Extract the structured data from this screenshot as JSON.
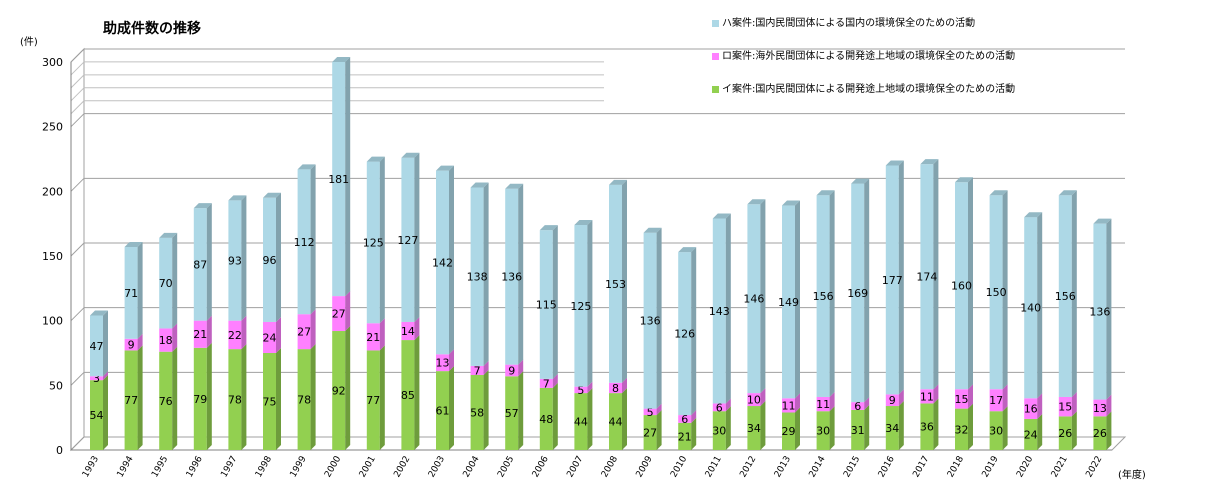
{
  "title": "助成件数の推移",
  "y_unit": "(件)",
  "x_unit": "(年度)",
  "legend": [
    {
      "label": "ハ案件:国内民間団体による国内の環境保全のための活動",
      "color": "#add8e6"
    },
    {
      "label": "ロ案件:海外民間団体による開発途上地域の環境保全のための活動",
      "color": "#ff80ff"
    },
    {
      "label": "イ案件:国内民間団体による開発途上地域の環境保全のための活動",
      "color": "#92d050"
    }
  ],
  "chart_data": {
    "type": "bar",
    "stacked": true,
    "title": "助成件数の推移",
    "xlabel": "(年度)",
    "ylabel": "(件)",
    "ylim": [
      0,
      300
    ],
    "yticks": [
      0,
      50,
      100,
      150,
      200,
      250,
      300
    ],
    "categories": [
      "1993",
      "1994",
      "1995",
      "1996",
      "1997",
      "1998",
      "1999",
      "2000",
      "2001",
      "2002",
      "2003",
      "2004",
      "2005",
      "2006",
      "2007",
      "2008",
      "2009",
      "2010",
      "2011",
      "2012",
      "2013",
      "2014",
      "2015",
      "2016",
      "2017",
      "2018",
      "2019",
      "2020",
      "2021",
      "2022"
    ],
    "series": [
      {
        "name": "イ案件:国内民間団体による開発途上地域の環境保全のための活動",
        "color": "#92d050",
        "values": [
          54,
          77,
          76,
          79,
          78,
          75,
          78,
          92,
          77,
          85,
          61,
          58,
          57,
          48,
          44,
          44,
          27,
          21,
          30,
          34,
          29,
          30,
          31,
          34,
          36,
          32,
          30,
          24,
          26,
          26
        ]
      },
      {
        "name": "ロ案件:海外民間団体による開発途上地域の環境保全のための活動",
        "color": "#ff80ff",
        "values": [
          3,
          9,
          18,
          21,
          22,
          24,
          27,
          27,
          21,
          14,
          13,
          7,
          9,
          7,
          5,
          8,
          5,
          6,
          6,
          10,
          11,
          11,
          6,
          9,
          11,
          15,
          17,
          16,
          15,
          13
        ]
      },
      {
        "name": "ハ案件:国内民間団体による国内の環境保全のための活動",
        "color": "#add8e6",
        "values": [
          47,
          71,
          70,
          87,
          93,
          96,
          112,
          181,
          125,
          127,
          142,
          138,
          136,
          115,
          125,
          153,
          136,
          126,
          143,
          146,
          149,
          156,
          169,
          177,
          174,
          160,
          150,
          140,
          156,
          136
        ]
      }
    ],
    "grid": true,
    "legend_position": "top-right"
  }
}
